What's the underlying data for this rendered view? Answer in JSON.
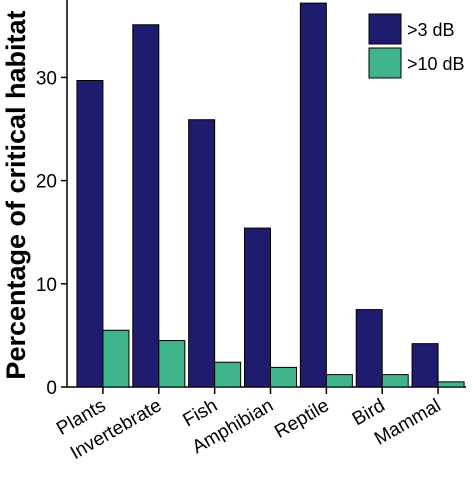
{
  "chart_data": {
    "type": "bar",
    "categories": [
      "Plants",
      "Invertebrate",
      "Fish",
      "Amphibian",
      "Reptile",
      "Bird",
      "Mammal"
    ],
    "series": [
      {
        "name": ">3 dB",
        "color": "#1f1b6e",
        "values": [
          29.7,
          35.1,
          25.9,
          15.4,
          37.2,
          7.5,
          4.2
        ]
      },
      {
        "name": ">10 dB",
        "color": "#3fb48d",
        "values": [
          5.5,
          4.5,
          2.4,
          1.9,
          1.2,
          1.2,
          0.5
        ]
      }
    ],
    "title": "",
    "xlabel": "",
    "ylabel": "Percentage of critical habitat",
    "ylim": [
      0,
      37.5
    ],
    "yticks": [
      0,
      10,
      20,
      30
    ],
    "grid": false,
    "legend_position": "top-right"
  }
}
